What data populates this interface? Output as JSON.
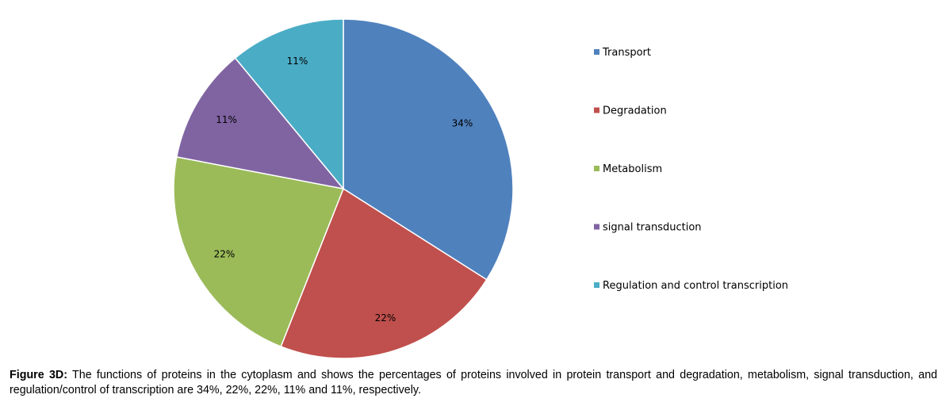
{
  "chart_data": {
    "type": "pie",
    "categories": [
      "Transport",
      "Degradation",
      "Metabolism",
      "signal transduction",
      "Regulation and control transcription"
    ],
    "values": [
      34,
      22,
      22,
      11,
      11
    ],
    "data_labels": [
      "34%",
      "22%",
      "22%",
      "11%",
      "11%"
    ],
    "colors": [
      "#4F81BD",
      "#C0504D",
      "#9BBB59",
      "#8064A2",
      "#4BACC6"
    ],
    "legend_position": "right",
    "start": "top, clockwise"
  },
  "caption": {
    "label": "Figure 3D:",
    "text": " The functions of proteins in the cytoplasm  and shows the percentages of proteins involved in protein transport and degradation, metabolism, signal transduction, and regulation/control of transcription are 34%, 22%, 22%, 11% and 11%, respectively."
  }
}
